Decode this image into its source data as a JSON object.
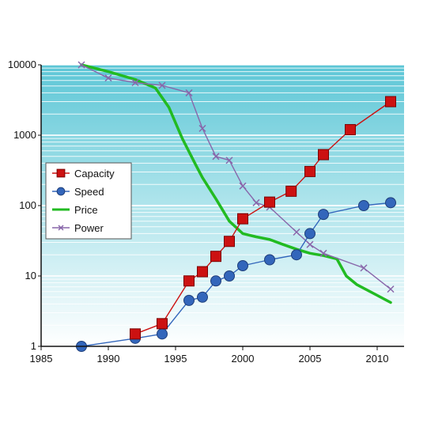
{
  "chart_data": {
    "type": "line",
    "title": "",
    "xlabel": "",
    "ylabel": "",
    "xlim": [
      1985,
      2012
    ],
    "ylim": [
      1,
      10000
    ],
    "yscale": "log",
    "x_ticks": [
      1985,
      1990,
      1995,
      2000,
      2005,
      2010
    ],
    "y_ticks": [
      1,
      10,
      100,
      1000,
      10000
    ],
    "grid": true,
    "legend_position": "left",
    "series": [
      {
        "name": "Capacity",
        "color": "#cc1111",
        "marker": "square",
        "points": [
          [
            1992,
            1.5
          ],
          [
            1994,
            2.1
          ],
          [
            1996,
            8.5
          ],
          [
            1997,
            11.5
          ],
          [
            1998,
            19
          ],
          [
            1999,
            31
          ],
          [
            2000,
            65
          ],
          [
            2002,
            112
          ],
          [
            2003.6,
            160
          ],
          [
            2005,
            305
          ],
          [
            2006,
            530
          ],
          [
            2008,
            1200
          ],
          [
            2011,
            3000
          ]
        ]
      },
      {
        "name": "Speed",
        "color": "#3366bb",
        "marker": "circle",
        "points": [
          [
            1988,
            1
          ],
          [
            1992,
            1.3
          ],
          [
            1994,
            1.5
          ],
          [
            1996,
            4.5
          ],
          [
            1997,
            5
          ],
          [
            1998,
            8.5
          ],
          [
            1999,
            10
          ],
          [
            2000,
            14
          ],
          [
            2002,
            17
          ],
          [
            2004,
            20
          ],
          [
            2005,
            40
          ],
          [
            2006,
            75
          ],
          [
            2009,
            100
          ],
          [
            2011,
            110
          ]
        ]
      },
      {
        "name": "Price",
        "color": "#22bb22",
        "marker": "none",
        "points": [
          [
            1988,
            10000
          ],
          [
            1990,
            8000
          ],
          [
            1992,
            6200
          ],
          [
            1993.5,
            4700
          ],
          [
            1994.5,
            2500
          ],
          [
            1995.5,
            900
          ],
          [
            1996.5,
            380
          ],
          [
            1997,
            250
          ],
          [
            1998,
            125
          ],
          [
            1999,
            60
          ],
          [
            2000,
            40
          ],
          [
            2001,
            36
          ],
          [
            2002,
            33
          ],
          [
            2003,
            28
          ],
          [
            2004,
            24
          ],
          [
            2005,
            21
          ],
          [
            2006,
            19.5
          ],
          [
            2007,
            17.5
          ],
          [
            2007.7,
            10
          ],
          [
            2008.5,
            7.5
          ],
          [
            2010,
            5.3
          ],
          [
            2011,
            4.2
          ]
        ]
      },
      {
        "name": "Power",
        "color": "#8866aa",
        "marker": "x",
        "points": [
          [
            1988,
            10000
          ],
          [
            1990,
            6500
          ],
          [
            1992,
            5600
          ],
          [
            1994,
            5100
          ],
          [
            1996,
            4000
          ],
          [
            1997,
            1250
          ],
          [
            1998,
            500
          ],
          [
            1999,
            440
          ],
          [
            2000,
            190
          ],
          [
            2001,
            110
          ],
          [
            2002,
            95
          ],
          [
            2004,
            42
          ],
          [
            2005,
            28
          ],
          [
            2006,
            21
          ],
          [
            2009,
            13
          ],
          [
            2011,
            6.5
          ]
        ]
      }
    ]
  }
}
